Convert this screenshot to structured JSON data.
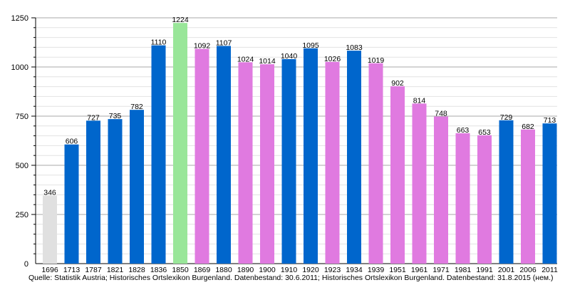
{
  "chart_data": {
    "type": "bar",
    "title": "",
    "xlabel": "",
    "ylabel": "",
    "ylim": [
      0,
      1250
    ],
    "yticks": [
      0,
      250,
      500,
      750,
      1000,
      1250
    ],
    "grid": true,
    "categories": [
      "1696",
      "1713",
      "1787",
      "1821",
      "1828",
      "1836",
      "1850",
      "1869",
      "1880",
      "1890",
      "1900",
      "1910",
      "1920",
      "1923",
      "1934",
      "1939",
      "1951",
      "1961",
      "1971",
      "1981",
      "1991",
      "2001",
      "2006",
      "2011"
    ],
    "values": [
      346,
      606,
      727,
      735,
      782,
      1110,
      1224,
      1092,
      1107,
      1024,
      1014,
      1040,
      1095,
      1026,
      1083,
      1019,
      902,
      814,
      748,
      663,
      653,
      729,
      682,
      713
    ],
    "bar_colors": [
      "#e0e0e0",
      "#0066cc",
      "#0066cc",
      "#0066cc",
      "#0066cc",
      "#0066cc",
      "#99e699",
      "#e07ae0",
      "#0066cc",
      "#e07ae0",
      "#e07ae0",
      "#0066cc",
      "#0066cc",
      "#e07ae0",
      "#0066cc",
      "#e07ae0",
      "#e07ae0",
      "#e07ae0",
      "#e07ae0",
      "#e07ae0",
      "#e07ae0",
      "#0066cc",
      "#e07ae0",
      "#0066cc"
    ],
    "source": "Quelle: Statistik Austria; Historisches Ortslexikon Burgenland. Datenbestand: 30.6.2011; Historisches Ortslexikon Burgenland. Datenbestand: 31.8.2015 (нем.)"
  }
}
